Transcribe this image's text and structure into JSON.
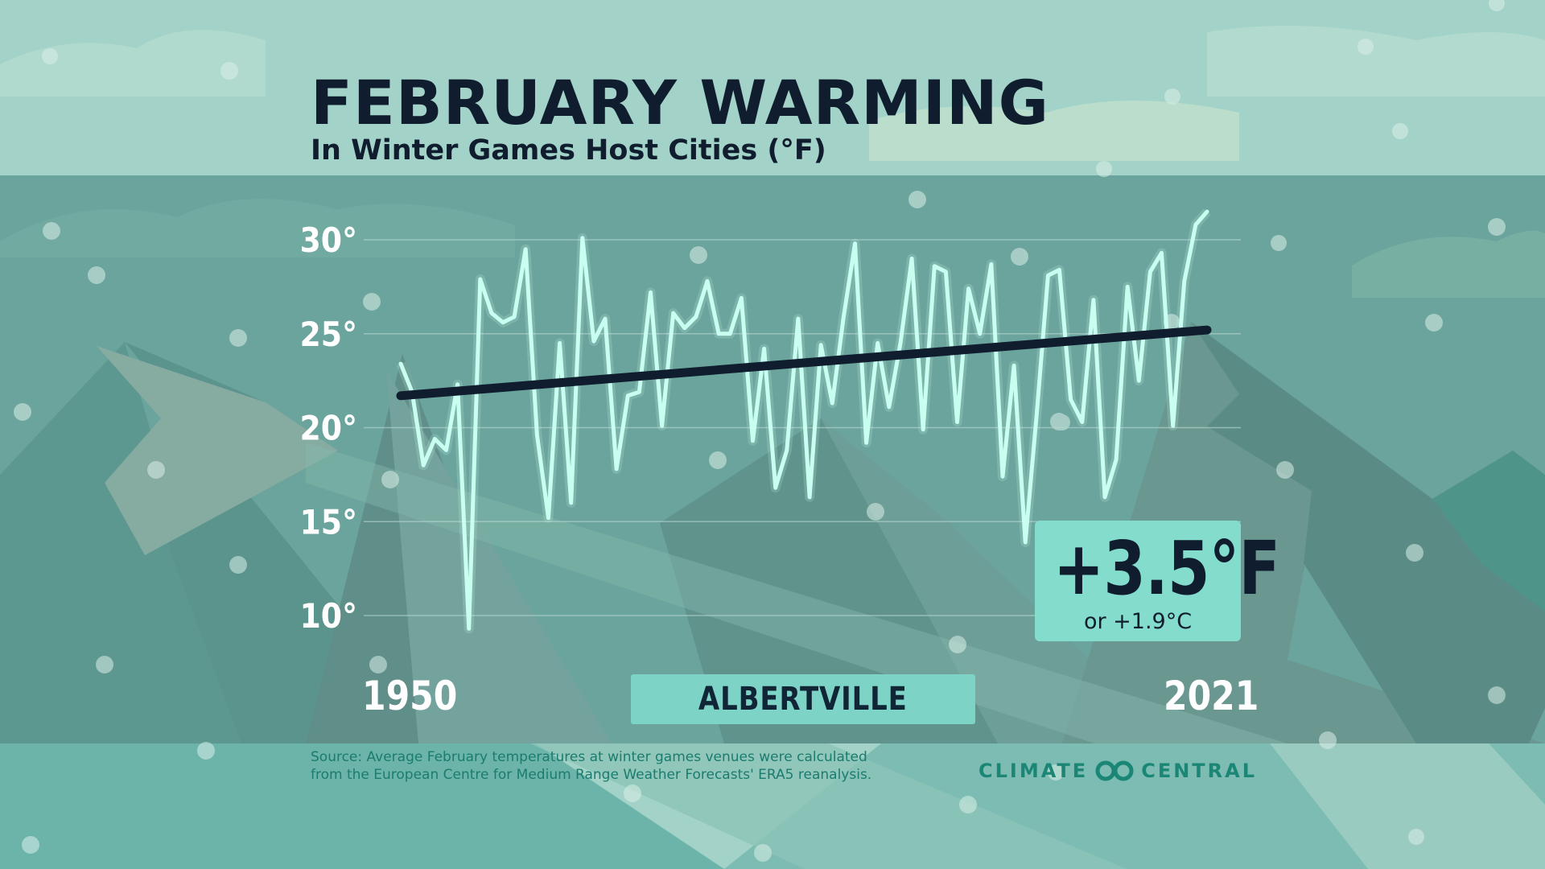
{
  "title": "FEBRUARY WARMING",
  "subtitle": "In Winter Games Host Cities (°F)",
  "city": "ALBERTVILLE",
  "callout": {
    "value": "+3.5°F",
    "sub": "or +1.9°C"
  },
  "source": {
    "line1": "Source: Average February temperatures at winter games venues were calculated",
    "line2": "from the European Centre for Medium Range Weather Forecasts' ERA5 reanalysis."
  },
  "brand": {
    "left": "CLIMATE",
    "icon": "infinity-logo-icon",
    "right": "CENTRAL"
  },
  "colors": {
    "line": "#c9fff0",
    "trend": "#0f1d2e",
    "callout_bg": "#84dccd",
    "city_bg": "#7dd4c6",
    "panel": "#5f958e"
  },
  "chart_data": {
    "type": "line",
    "title": "FEBRUARY WARMING",
    "subtitle": "In Winter Games Host Cities (°F)",
    "x": [
      1950,
      1951,
      1952,
      1953,
      1954,
      1955,
      1956,
      1957,
      1958,
      1959,
      1960,
      1961,
      1962,
      1963,
      1964,
      1965,
      1966,
      1967,
      1968,
      1969,
      1970,
      1971,
      1972,
      1973,
      1974,
      1975,
      1976,
      1977,
      1978,
      1979,
      1980,
      1981,
      1982,
      1983,
      1984,
      1985,
      1986,
      1987,
      1988,
      1989,
      1990,
      1991,
      1992,
      1993,
      1994,
      1995,
      1996,
      1997,
      1998,
      1999,
      2000,
      2001,
      2002,
      2003,
      2004,
      2005,
      2006,
      2007,
      2008,
      2009,
      2010,
      2011,
      2012,
      2013,
      2014,
      2015,
      2016,
      2017,
      2018,
      2019,
      2020,
      2021
    ],
    "x_tick_labels": [
      "1950",
      "2021"
    ],
    "y_ticks": [
      10,
      15,
      20,
      25,
      30
    ],
    "y_tick_labels": [
      "10°",
      "15°",
      "20°",
      "25°",
      "30°"
    ],
    "ylim": [
      8.8,
      32
    ],
    "series": [
      {
        "values": [
          23.4,
          21.9,
          18.0,
          19.4,
          18.8,
          22.3,
          9.3,
          27.9,
          26.1,
          25.6,
          25.9,
          29.5,
          19.6,
          15.2,
          24.5,
          16.0,
          30.1,
          24.6,
          25.8,
          17.8,
          21.7,
          21.9,
          27.2,
          20.1,
          26.1,
          25.3,
          25.9,
          27.8,
          25.0,
          25.0,
          26.9,
          19.3,
          24.2,
          16.8,
          18.8,
          25.8,
          16.3,
          24.4,
          21.3,
          25.9,
          29.8,
          19.2,
          24.5,
          21.1,
          24.5,
          29.0,
          19.9,
          28.6,
          28.3,
          20.3,
          27.4,
          25.0,
          28.7,
          17.4,
          23.3,
          13.9,
          20.7,
          28.1,
          28.4,
          21.5,
          20.3,
          26.8,
          16.3,
          18.3,
          27.5,
          22.5,
          28.3,
          29.3,
          20.1,
          27.8,
          30.8,
          31.5
        ],
        "style": "line"
      },
      {
        "x": [
          1950,
          2021
        ],
        "values": [
          21.7,
          25.2
        ],
        "style": "trend"
      }
    ]
  }
}
